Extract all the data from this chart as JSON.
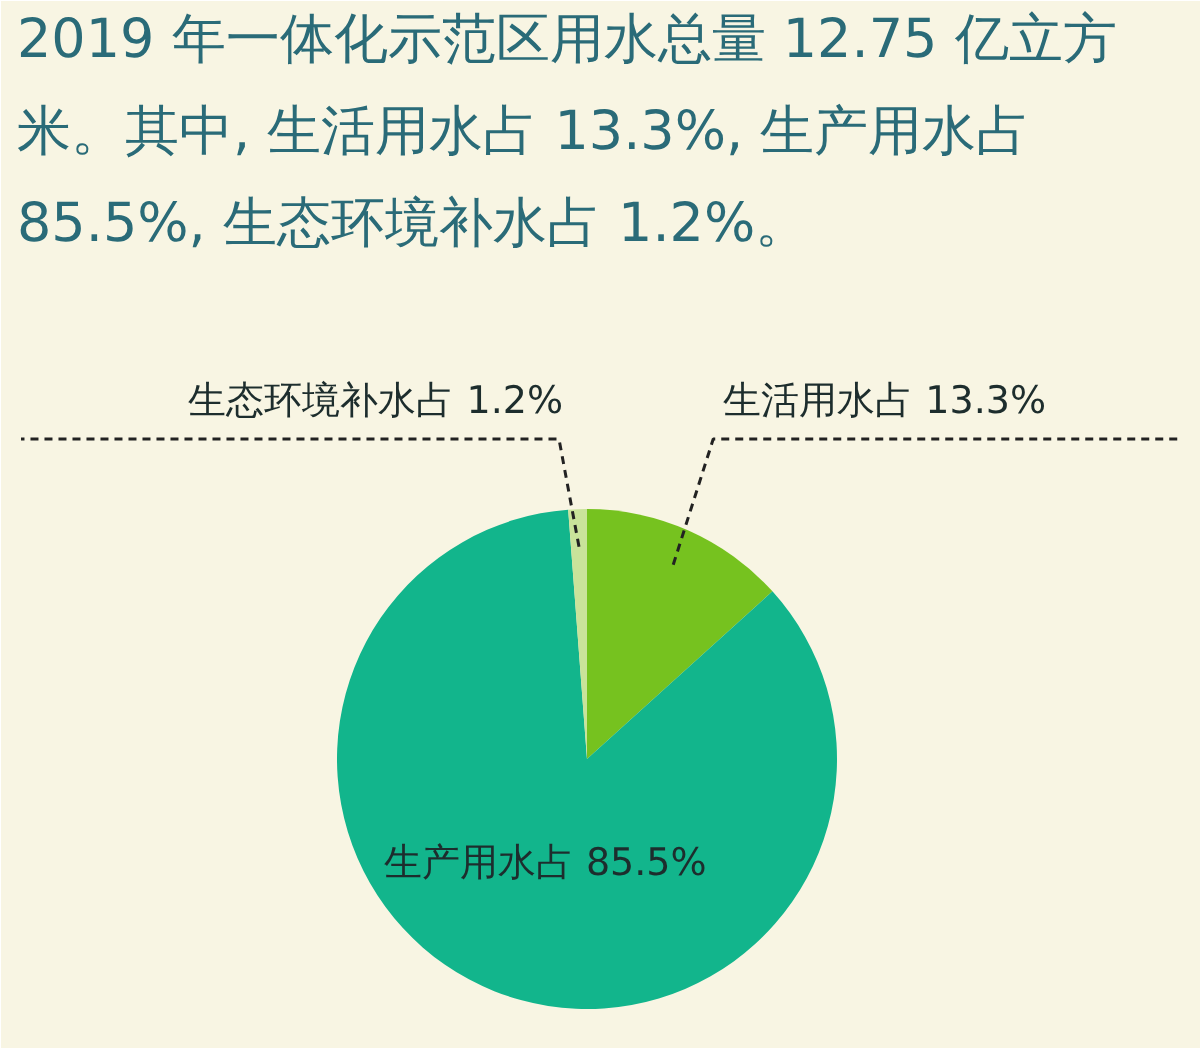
{
  "chart_data": {
    "type": "pie",
    "title": "2019 年一体化示范区用水总量 12.75 亿立方米。其中, 生活用水占 13.3%, 生产用水占 85.5%, 生态环境补水占 1.2%。",
    "categories": [
      "生活用水占",
      "生产用水占",
      "生态环境补水占"
    ],
    "values": [
      13.3,
      85.5,
      1.2
    ],
    "value_labels": [
      "13.3%",
      "85.5%",
      "1.2%"
    ],
    "colors": [
      "#76c21f",
      "#12b58c",
      "#c9e39a"
    ]
  }
}
